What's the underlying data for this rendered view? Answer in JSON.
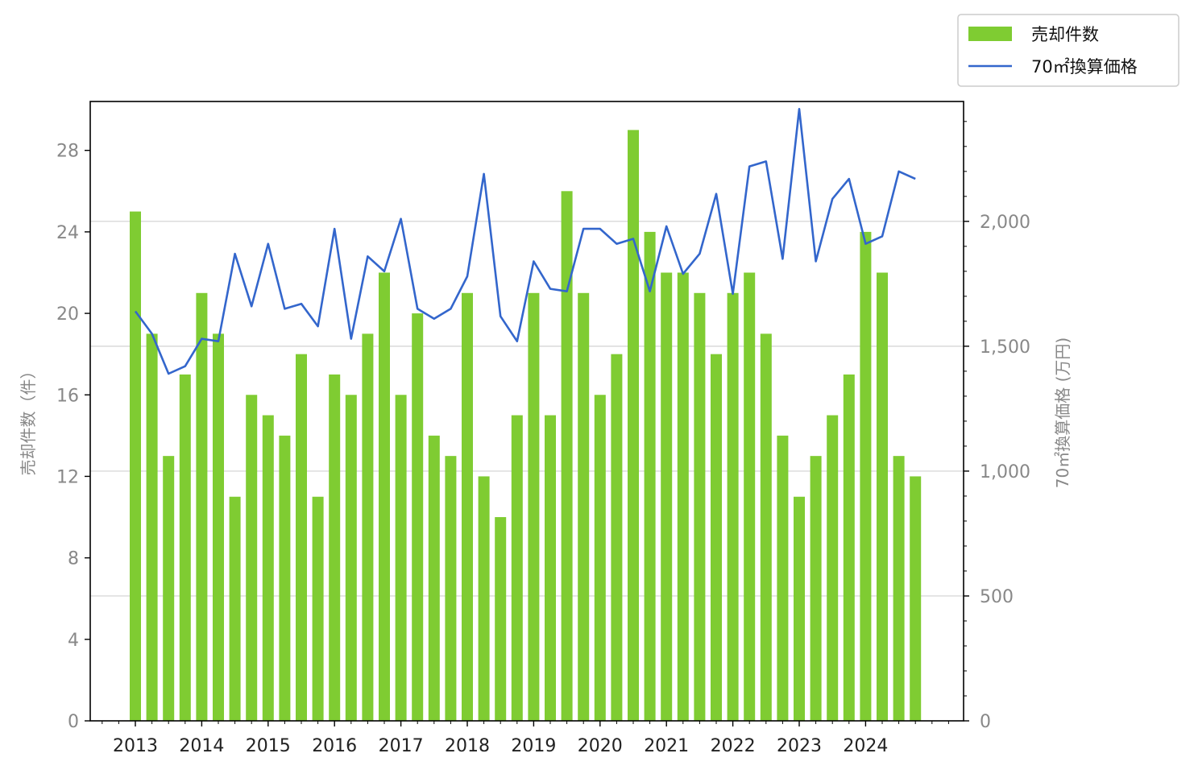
{
  "chart_data": {
    "type": "bar",
    "title": "",
    "x_tick_labels": [
      "2013",
      "2014",
      "2015",
      "2016",
      "2017",
      "2018",
      "2019",
      "2020",
      "2021",
      "2022",
      "2023",
      "2024"
    ],
    "periods_per_year": 4,
    "series": [
      {
        "name": "売却件数",
        "type": "bar",
        "axis": "left",
        "color": "#7fcc32",
        "values": [
          25,
          19,
          13,
          17,
          21,
          19,
          11,
          16,
          15,
          14,
          18,
          11,
          17,
          16,
          19,
          22,
          16,
          20,
          14,
          13,
          21,
          12,
          10,
          15,
          21,
          15,
          26,
          21,
          16,
          18,
          29,
          24,
          22,
          22,
          21,
          18,
          21,
          22,
          19,
          14,
          11,
          13,
          15,
          17,
          24,
          22,
          13,
          12
        ]
      },
      {
        "name": "70㎡換算価格",
        "type": "line",
        "axis": "right",
        "color": "#3366cc",
        "values": [
          1640,
          1550,
          1390,
          1420,
          1530,
          1520,
          1870,
          1660,
          1910,
          1650,
          1670,
          1580,
          1970,
          1530,
          1860,
          1800,
          2010,
          1650,
          1610,
          1650,
          1780,
          2190,
          1620,
          1520,
          1840,
          1730,
          1720,
          1970,
          1970,
          1910,
          1930,
          1720,
          1980,
          1790,
          1870,
          2110,
          1710,
          2220,
          2240,
          1850,
          2450,
          1840,
          2090,
          2170,
          1910,
          1940,
          2200,
          2170
        ]
      }
    ],
    "y_left": {
      "label": "売却件数（件）",
      "ylim": [
        0,
        30.4
      ],
      "ticks": [
        0,
        4,
        8,
        12,
        16,
        20,
        24,
        28
      ],
      "tick_labels": [
        "0",
        "4",
        "8",
        "12",
        "16",
        "20",
        "24",
        "28"
      ]
    },
    "y_right": {
      "label": "70㎡換算価格 (万円)",
      "ylim": [
        0,
        2480
      ],
      "ticks": [
        0,
        500,
        1000,
        1500,
        2000
      ],
      "tick_labels": [
        "0",
        "500",
        "1,000",
        "1,500",
        "2,000"
      ]
    },
    "grid": "horizontal-right-axis",
    "legend_position": "top-right-outside"
  }
}
